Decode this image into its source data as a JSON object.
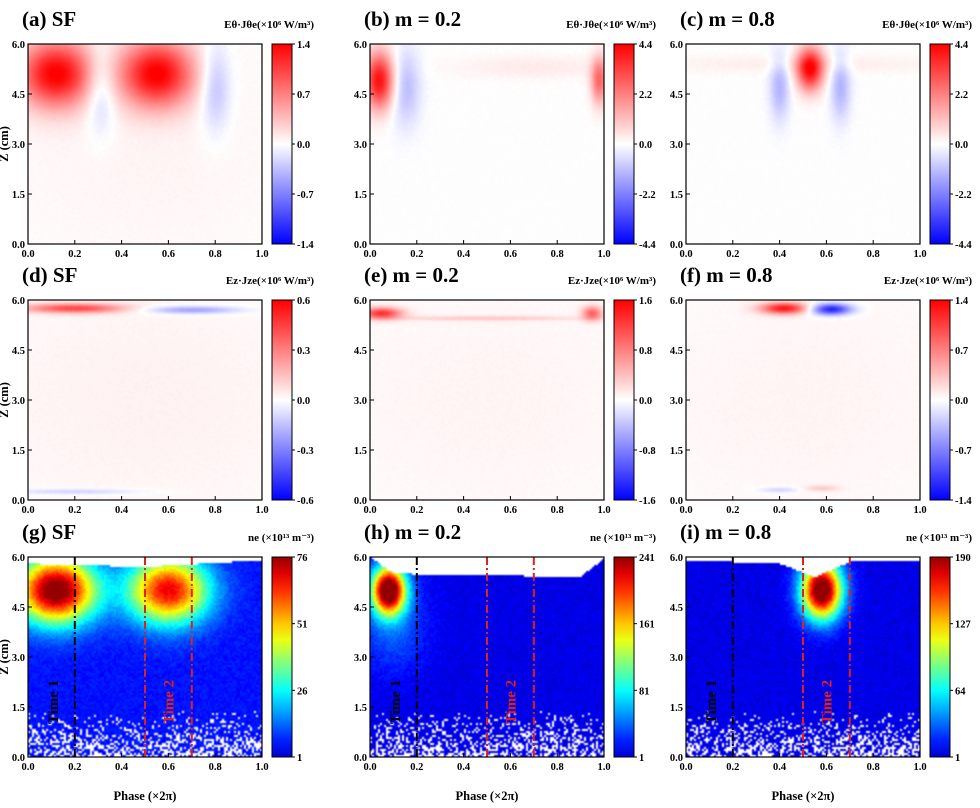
{
  "chart_data": [
    {
      "id": "a",
      "type": "heatmap",
      "row": 0,
      "col": 0,
      "title": "(a) SF",
      "colorbar_label": "Eθ·Jθe(×10⁶ W/m³)",
      "colorbar_ticks": [
        "1.4",
        "0.7",
        "0.0",
        "-0.7",
        "-1.4"
      ],
      "colormap": "diverging",
      "zlim": [
        -1.4,
        1.4
      ],
      "ylabel": "Z (cm)",
      "xlim": [
        0,
        1
      ],
      "ylim": [
        0,
        6
      ],
      "blobs": [
        {
          "x": 0.12,
          "z": 5.1,
          "sx": 0.11,
          "sz": 0.7,
          "a": 1.0
        },
        {
          "x": 0.55,
          "z": 5.1,
          "sx": 0.11,
          "sz": 0.7,
          "a": 1.0
        },
        {
          "x": 0.31,
          "z": 4.7,
          "sx": 0.045,
          "sz": 0.9,
          "a": -0.28
        },
        {
          "x": 0.8,
          "z": 4.7,
          "sx": 0.045,
          "sz": 0.9,
          "a": -0.28
        },
        {
          "x": 0.5,
          "z": 3.0,
          "sx": 0.5,
          "sz": 3.0,
          "a": 0.04
        }
      ]
    },
    {
      "id": "b",
      "type": "heatmap",
      "row": 0,
      "col": 1,
      "title": "(b) m = 0.2",
      "colorbar_label": "Eθ·Jθe(×10⁶ W/m³)",
      "colorbar_ticks": [
        "4.4",
        "2.2",
        "0.0",
        "-2.2",
        "-4.4"
      ],
      "colormap": "diverging",
      "zlim": [
        -4.4,
        4.4
      ],
      "ylabel": "",
      "xlim": [
        0,
        1
      ],
      "ylim": [
        0,
        6
      ],
      "blobs": [
        {
          "x": 0.04,
          "z": 4.9,
          "sx": 0.045,
          "sz": 0.6,
          "a": 0.95
        },
        {
          "x": 0.15,
          "z": 4.7,
          "sx": 0.045,
          "sz": 0.8,
          "a": -0.28
        },
        {
          "x": 0.98,
          "z": 4.9,
          "sx": 0.025,
          "sz": 0.5,
          "a": 0.6
        },
        {
          "x": 0.7,
          "z": 5.3,
          "sx": 0.25,
          "sz": 0.25,
          "a": 0.08
        }
      ]
    },
    {
      "id": "c",
      "type": "heatmap",
      "row": 0,
      "col": 2,
      "title": "(c) m = 0.8",
      "colorbar_label": "Eθ·Jθe(×10⁶ W/m³)",
      "colorbar_ticks": [
        "4.4",
        "2.2",
        "0.0",
        "-2.2",
        "-4.4"
      ],
      "colormap": "diverging",
      "zlim": [
        -4.4,
        4.4
      ],
      "ylabel": "",
      "xlim": [
        0,
        1
      ],
      "ylim": [
        0,
        6
      ],
      "blobs": [
        {
          "x": 0.53,
          "z": 5.25,
          "sx": 0.04,
          "sz": 0.45,
          "a": 1.0
        },
        {
          "x": 0.4,
          "z": 4.7,
          "sx": 0.03,
          "sz": 0.7,
          "a": -0.3
        },
        {
          "x": 0.66,
          "z": 4.7,
          "sx": 0.03,
          "sz": 0.7,
          "a": -0.3
        },
        {
          "x": 0.5,
          "z": 5.4,
          "sx": 0.5,
          "sz": 0.2,
          "a": 0.07
        }
      ]
    },
    {
      "id": "d",
      "type": "heatmap",
      "row": 1,
      "col": 0,
      "title": "(d) SF",
      "colorbar_label": "Ez·Jze(×10⁶ W/m³)",
      "colorbar_ticks": [
        "0.6",
        "0.3",
        "0.0",
        "-0.3",
        "-0.6"
      ],
      "colormap": "diverging",
      "zlim": [
        -0.6,
        0.6
      ],
      "ylabel": "Z (cm)",
      "xlim": [
        0,
        1
      ],
      "ylim": [
        0,
        6
      ],
      "blobs": [
        {
          "x": 0.2,
          "z": 5.75,
          "sx": 0.15,
          "sz": 0.1,
          "a": 0.7
        },
        {
          "x": 0.7,
          "z": 5.7,
          "sx": 0.14,
          "sz": 0.08,
          "a": -0.4
        },
        {
          "x": 0.5,
          "z": 3.0,
          "sx": 0.6,
          "sz": 3.0,
          "a": 0.05
        },
        {
          "x": 0.2,
          "z": 0.25,
          "sx": 0.2,
          "sz": 0.06,
          "a": -0.2
        }
      ]
    },
    {
      "id": "e",
      "type": "heatmap",
      "row": 1,
      "col": 1,
      "title": "(e) m = 0.2",
      "colorbar_label": "Ez·Jze(×10⁶ W/m³)",
      "colorbar_ticks": [
        "1.6",
        "0.8",
        "0.0",
        "-0.8",
        "-1.6"
      ],
      "colormap": "diverging",
      "zlim": [
        -1.6,
        1.6
      ],
      "ylabel": "",
      "xlim": [
        0,
        1
      ],
      "ylim": [
        0,
        6
      ],
      "blobs": [
        {
          "x": 0.05,
          "z": 5.6,
          "sx": 0.06,
          "sz": 0.12,
          "a": 0.8
        },
        {
          "x": 0.95,
          "z": 5.6,
          "sx": 0.03,
          "sz": 0.15,
          "a": 0.6
        },
        {
          "x": 0.5,
          "z": 5.45,
          "sx": 0.3,
          "sz": 0.05,
          "a": 0.2
        },
        {
          "x": 0.5,
          "z": 3.0,
          "sx": 0.6,
          "sz": 3.0,
          "a": 0.04
        }
      ]
    },
    {
      "id": "f",
      "type": "heatmap",
      "row": 1,
      "col": 2,
      "title": "(f) m = 0.8",
      "colorbar_label": "Ez·Jze(×10⁶ W/m³)",
      "colorbar_ticks": [
        "1.4",
        "0.7",
        "0.0",
        "-0.7",
        "-1.4"
      ],
      "colormap": "diverging",
      "zlim": [
        -1.4,
        1.4
      ],
      "ylabel": "",
      "xlim": [
        0,
        1
      ],
      "ylim": [
        0,
        6
      ],
      "blobs": [
        {
          "x": 0.42,
          "z": 5.75,
          "sx": 0.07,
          "sz": 0.12,
          "a": 0.9
        },
        {
          "x": 0.62,
          "z": 5.72,
          "sx": 0.06,
          "sz": 0.12,
          "a": -0.9
        },
        {
          "x": 0.5,
          "z": 3.0,
          "sx": 0.6,
          "sz": 3.0,
          "a": 0.04
        },
        {
          "x": 0.4,
          "z": 0.3,
          "sx": 0.06,
          "sz": 0.06,
          "a": -0.2
        },
        {
          "x": 0.58,
          "z": 0.35,
          "sx": 0.05,
          "sz": 0.06,
          "a": 0.2
        }
      ]
    },
    {
      "id": "g",
      "type": "heatmap",
      "row": 2,
      "col": 0,
      "title": "(g) SF",
      "colorbar_label": "ne (×10¹³ m⁻³)",
      "colorbar_ticks": [
        "76",
        "51",
        "26",
        "1"
      ],
      "colormap": "jet",
      "zlim": [
        1,
        76
      ],
      "ylabel": "Z (cm)",
      "xlabel": "Phase (×2π)",
      "xlim": [
        0,
        1
      ],
      "ylim": [
        0,
        6
      ],
      "blobs": [
        {
          "x": 0.12,
          "z": 5.0,
          "sx": 0.12,
          "sz": 0.7,
          "a": 0.9
        },
        {
          "x": 0.6,
          "z": 5.0,
          "sx": 0.12,
          "sz": 0.7,
          "a": 0.75
        }
      ],
      "base": 0.12,
      "top_profile": [
        [
          0,
          5.8
        ],
        [
          0.5,
          5.7
        ],
        [
          1,
          5.9
        ]
      ],
      "time_lines": [
        {
          "label": "Time 1",
          "x": 0.2,
          "color": "#000000"
        },
        {
          "label": "Time 2",
          "x": [
            0.5,
            0.7
          ],
          "color": "#e0201a"
        }
      ]
    },
    {
      "id": "h",
      "type": "heatmap",
      "row": 2,
      "col": 1,
      "title": "(h) m = 0.2",
      "colorbar_label": "ne (×10¹³ m⁻³)",
      "colorbar_ticks": [
        "241",
        "161",
        "81",
        "1"
      ],
      "colormap": "jet",
      "zlim": [
        1,
        241
      ],
      "ylabel": "",
      "xlabel": "Phase (×2π)",
      "xlim": [
        0,
        1
      ],
      "ylim": [
        0,
        6
      ],
      "blobs": [
        {
          "x": 0.08,
          "z": 5.0,
          "sx": 0.05,
          "sz": 0.5,
          "a": 1.0
        },
        {
          "x": 0.1,
          "z": 4.0,
          "sx": 0.1,
          "sz": 1.0,
          "a": 0.12
        }
      ],
      "base": 0.08,
      "top_profile": [
        [
          0,
          6.0
        ],
        [
          0.1,
          5.5
        ],
        [
          0.9,
          5.4
        ],
        [
          1,
          5.95
        ]
      ],
      "time_lines": [
        {
          "label": "Time 1",
          "x": 0.2,
          "color": "#000000"
        },
        {
          "label": "Time 2",
          "x": [
            0.5,
            0.7
          ],
          "color": "#e0201a"
        }
      ]
    },
    {
      "id": "i",
      "type": "heatmap",
      "row": 2,
      "col": 2,
      "title": "(i) m = 0.8",
      "colorbar_label": "ne (×10¹³ m⁻³)",
      "colorbar_ticks": [
        "190",
        "127",
        "64",
        "1"
      ],
      "colormap": "jet",
      "zlim": [
        1,
        190
      ],
      "ylabel": "",
      "xlabel": "Phase (×2π)",
      "xlim": [
        0,
        1
      ],
      "ylim": [
        0,
        6
      ],
      "blobs": [
        {
          "x": 0.58,
          "z": 5.0,
          "sx": 0.06,
          "sz": 0.6,
          "a": 1.0
        }
      ],
      "base": 0.08,
      "top_profile": [
        [
          0,
          5.9
        ],
        [
          0.4,
          5.8
        ],
        [
          0.55,
          5.4
        ],
        [
          0.7,
          5.85
        ],
        [
          1,
          5.9
        ]
      ],
      "time_lines": [
        {
          "label": "Time 1",
          "x": 0.2,
          "color": "#000000"
        },
        {
          "label": "Time 2",
          "x": [
            0.5,
            0.7
          ],
          "color": "#e0201a"
        }
      ]
    }
  ],
  "axes": {
    "xticks": [
      "0.0",
      "0.2",
      "0.4",
      "0.6",
      "0.8",
      "1.0"
    ],
    "yticks": [
      "0.0",
      "1.5",
      "3.0",
      "4.5",
      "6.0"
    ]
  }
}
